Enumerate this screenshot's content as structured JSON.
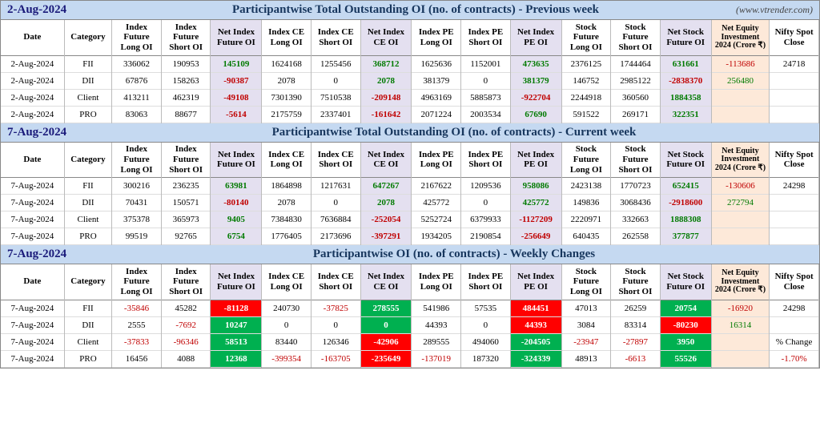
{
  "site": "(www.vtrender.com)",
  "sections": [
    {
      "date": "2-Aug-2024",
      "title": "Participantwise Total Outstanding OI (no. of contracts) - Previous week",
      "showSite": true,
      "headers": [
        "Date",
        "Category",
        "Index Future Long OI",
        "Index Future Short OI",
        "Net Index Future OI",
        "Index CE Long OI",
        "Index CE Short OI",
        "Net Index CE OI",
        "Index PE Long OI",
        "Index PE Short OI",
        "Net Index PE OI",
        "Stock Future Long OI",
        "Stock Future Short OI",
        "Net Stock Future OI",
        "Net Equity Investment 2024 (Crore ₹)",
        "Nifty Spot Close"
      ],
      "rows": [
        {
          "date": "2-Aug-2024",
          "cat": "FII",
          "cells": [
            {
              "v": "336062"
            },
            {
              "v": "190953"
            },
            {
              "v": "145109",
              "c": "pos"
            },
            {
              "v": "1624168"
            },
            {
              "v": "1255456"
            },
            {
              "v": "368712",
              "c": "pos"
            },
            {
              "v": "1625636"
            },
            {
              "v": "1152001"
            },
            {
              "v": "473635",
              "c": "pos"
            },
            {
              "v": "2376125"
            },
            {
              "v": "1744464"
            },
            {
              "v": "631661",
              "c": "pos"
            },
            {
              "v": "-113686",
              "c": "neg"
            },
            {
              "v": "24718"
            }
          ]
        },
        {
          "date": "2-Aug-2024",
          "cat": "DII",
          "cells": [
            {
              "v": "67876"
            },
            {
              "v": "158263"
            },
            {
              "v": "-90387",
              "c": "neg"
            },
            {
              "v": "2078"
            },
            {
              "v": "0"
            },
            {
              "v": "2078",
              "c": "pos"
            },
            {
              "v": "381379"
            },
            {
              "v": "0"
            },
            {
              "v": "381379",
              "c": "pos"
            },
            {
              "v": "146752"
            },
            {
              "v": "2985122"
            },
            {
              "v": "-2838370",
              "c": "neg"
            },
            {
              "v": "256480",
              "c": "pos"
            },
            {
              "v": ""
            }
          ]
        },
        {
          "date": "2-Aug-2024",
          "cat": "Client",
          "cells": [
            {
              "v": "413211"
            },
            {
              "v": "462319"
            },
            {
              "v": "-49108",
              "c": "neg"
            },
            {
              "v": "7301390"
            },
            {
              "v": "7510538"
            },
            {
              "v": "-209148",
              "c": "neg"
            },
            {
              "v": "4963169"
            },
            {
              "v": "5885873"
            },
            {
              "v": "-922704",
              "c": "neg"
            },
            {
              "v": "2244918"
            },
            {
              "v": "360560"
            },
            {
              "v": "1884358",
              "c": "pos"
            },
            {
              "v": ""
            },
            {
              "v": ""
            }
          ]
        },
        {
          "date": "2-Aug-2024",
          "cat": "PRO",
          "cells": [
            {
              "v": "83063"
            },
            {
              "v": "88677"
            },
            {
              "v": "-5614",
              "c": "neg"
            },
            {
              "v": "2175759"
            },
            {
              "v": "2337401"
            },
            {
              "v": "-161642",
              "c": "neg"
            },
            {
              "v": "2071224"
            },
            {
              "v": "2003534"
            },
            {
              "v": "67690",
              "c": "pos"
            },
            {
              "v": "591522"
            },
            {
              "v": "269171"
            },
            {
              "v": "322351",
              "c": "pos"
            },
            {
              "v": ""
            },
            {
              "v": ""
            }
          ]
        }
      ]
    },
    {
      "date": "7-Aug-2024",
      "title": "Participantwise Total Outstanding OI (no. of contracts) - Current week",
      "showSite": false,
      "headers": [
        "Date",
        "Category",
        "Index Future Long OI",
        "Index Future Short OI",
        "Net Index Future OI",
        "Index CE Long OI",
        "Index CE Short OI",
        "Net Index CE OI",
        "Index PE Long OI",
        "Index PE Short OI",
        "Net Index PE OI",
        "Stock Future Long OI",
        "Stock Future Short OI",
        "Net Stock Future OI",
        "Net Equity Investment 2024 (Crore ₹)",
        "Nifty Spot Close"
      ],
      "rows": [
        {
          "date": "7-Aug-2024",
          "cat": "FII",
          "cells": [
            {
              "v": "300216"
            },
            {
              "v": "236235"
            },
            {
              "v": "63981",
              "c": "pos"
            },
            {
              "v": "1864898"
            },
            {
              "v": "1217631"
            },
            {
              "v": "647267",
              "c": "pos"
            },
            {
              "v": "2167622"
            },
            {
              "v": "1209536"
            },
            {
              "v": "958086",
              "c": "pos"
            },
            {
              "v": "2423138"
            },
            {
              "v": "1770723"
            },
            {
              "v": "652415",
              "c": "pos"
            },
            {
              "v": "-130606",
              "c": "neg"
            },
            {
              "v": "24298"
            }
          ]
        },
        {
          "date": "7-Aug-2024",
          "cat": "DII",
          "cells": [
            {
              "v": "70431"
            },
            {
              "v": "150571"
            },
            {
              "v": "-80140",
              "c": "neg"
            },
            {
              "v": "2078"
            },
            {
              "v": "0"
            },
            {
              "v": "2078",
              "c": "pos"
            },
            {
              "v": "425772"
            },
            {
              "v": "0"
            },
            {
              "v": "425772",
              "c": "pos"
            },
            {
              "v": "149836"
            },
            {
              "v": "3068436"
            },
            {
              "v": "-2918600",
              "c": "neg"
            },
            {
              "v": "272794",
              "c": "pos"
            },
            {
              "v": ""
            }
          ]
        },
        {
          "date": "7-Aug-2024",
          "cat": "Client",
          "cells": [
            {
              "v": "375378"
            },
            {
              "v": "365973"
            },
            {
              "v": "9405",
              "c": "pos"
            },
            {
              "v": "7384830"
            },
            {
              "v": "7636884"
            },
            {
              "v": "-252054",
              "c": "neg"
            },
            {
              "v": "5252724"
            },
            {
              "v": "6379933"
            },
            {
              "v": "-1127209",
              "c": "neg"
            },
            {
              "v": "2220971"
            },
            {
              "v": "332663"
            },
            {
              "v": "1888308",
              "c": "pos"
            },
            {
              "v": ""
            },
            {
              "v": ""
            }
          ]
        },
        {
          "date": "7-Aug-2024",
          "cat": "PRO",
          "cells": [
            {
              "v": "99519"
            },
            {
              "v": "92765"
            },
            {
              "v": "6754",
              "c": "pos"
            },
            {
              "v": "1776405"
            },
            {
              "v": "2173696"
            },
            {
              "v": "-397291",
              "c": "neg"
            },
            {
              "v": "1934205"
            },
            {
              "v": "2190854"
            },
            {
              "v": "-256649",
              "c": "neg"
            },
            {
              "v": "640435"
            },
            {
              "v": "262558"
            },
            {
              "v": "377877",
              "c": "pos"
            },
            {
              "v": ""
            },
            {
              "v": ""
            }
          ]
        }
      ]
    },
    {
      "date": "7-Aug-2024",
      "title": "Participantwise OI (no. of contracts) - Weekly Changes",
      "showSite": false,
      "headers": [
        "Date",
        "Category",
        "Index Future Long OI",
        "Index Future Short OI",
        "Net Index Future OI",
        "Index CE Long OI",
        "Index CE Short OI",
        "Net Index CE OI",
        "Index PE Long OI",
        "Index PE Short OI",
        "Net Index PE OI",
        "Stock Future Long OI",
        "Stock Future Short OI",
        "Net Stock Future OI",
        "Net Equity Investment 2024 (Crore ₹)",
        "Nifty Spot Close"
      ],
      "rows": [
        {
          "date": "7-Aug-2024",
          "cat": "FII",
          "cells": [
            {
              "v": "-35846",
              "c": "neg"
            },
            {
              "v": "45282"
            },
            {
              "v": "-81128",
              "c": "hi-red"
            },
            {
              "v": "240730"
            },
            {
              "v": "-37825",
              "c": "neg"
            },
            {
              "v": "278555",
              "c": "hi-green"
            },
            {
              "v": "541986"
            },
            {
              "v": "57535"
            },
            {
              "v": "484451",
              "c": "hi-red"
            },
            {
              "v": "47013"
            },
            {
              "v": "26259"
            },
            {
              "v": "20754",
              "c": "hi-green"
            },
            {
              "v": "-16920",
              "c": "neg"
            },
            {
              "v": "24298"
            }
          ]
        },
        {
          "date": "7-Aug-2024",
          "cat": "DII",
          "cells": [
            {
              "v": "2555"
            },
            {
              "v": "-7692",
              "c": "neg"
            },
            {
              "v": "10247",
              "c": "hi-green"
            },
            {
              "v": "0"
            },
            {
              "v": "0"
            },
            {
              "v": "0",
              "c": "hi-green"
            },
            {
              "v": "44393"
            },
            {
              "v": "0"
            },
            {
              "v": "44393",
              "c": "hi-red"
            },
            {
              "v": "3084"
            },
            {
              "v": "83314"
            },
            {
              "v": "-80230",
              "c": "hi-red"
            },
            {
              "v": "16314",
              "c": "pos"
            },
            {
              "v": ""
            }
          ]
        },
        {
          "date": "7-Aug-2024",
          "cat": "Client",
          "cells": [
            {
              "v": "-37833",
              "c": "neg"
            },
            {
              "v": "-96346",
              "c": "neg"
            },
            {
              "v": "58513",
              "c": "hi-green"
            },
            {
              "v": "83440"
            },
            {
              "v": "126346"
            },
            {
              "v": "-42906",
              "c": "hi-red"
            },
            {
              "v": "289555"
            },
            {
              "v": "494060"
            },
            {
              "v": "-204505",
              "c": "hi-green"
            },
            {
              "v": "-23947",
              "c": "neg"
            },
            {
              "v": "-27897",
              "c": "neg"
            },
            {
              "v": "3950",
              "c": "hi-green"
            },
            {
              "v": ""
            },
            {
              "v": "% Change"
            }
          ]
        },
        {
          "date": "7-Aug-2024",
          "cat": "PRO",
          "cells": [
            {
              "v": "16456"
            },
            {
              "v": "4088"
            },
            {
              "v": "12368",
              "c": "hi-green"
            },
            {
              "v": "-399354",
              "c": "neg"
            },
            {
              "v": "-163705",
              "c": "neg"
            },
            {
              "v": "-235649",
              "c": "hi-red"
            },
            {
              "v": "-137019",
              "c": "neg"
            },
            {
              "v": "187320"
            },
            {
              "v": "-324339",
              "c": "hi-green"
            },
            {
              "v": "48913"
            },
            {
              "v": "-6613",
              "c": "neg"
            },
            {
              "v": "55526",
              "c": "hi-green"
            },
            {
              "v": ""
            },
            {
              "v": "-1.70%",
              "c": "neg"
            }
          ]
        }
      ]
    }
  ],
  "netColIdx": [
    2,
    5,
    8,
    11
  ],
  "neiColIdx": 12,
  "colors": {
    "titleBg": "#c5d9f1",
    "tanBg": "#fde9d9",
    "lavBg": "#e4e0f0",
    "neg": "#c00000",
    "pos": "#007a00",
    "hiRed": "#ff0000",
    "hiGreen": "#00b050"
  }
}
